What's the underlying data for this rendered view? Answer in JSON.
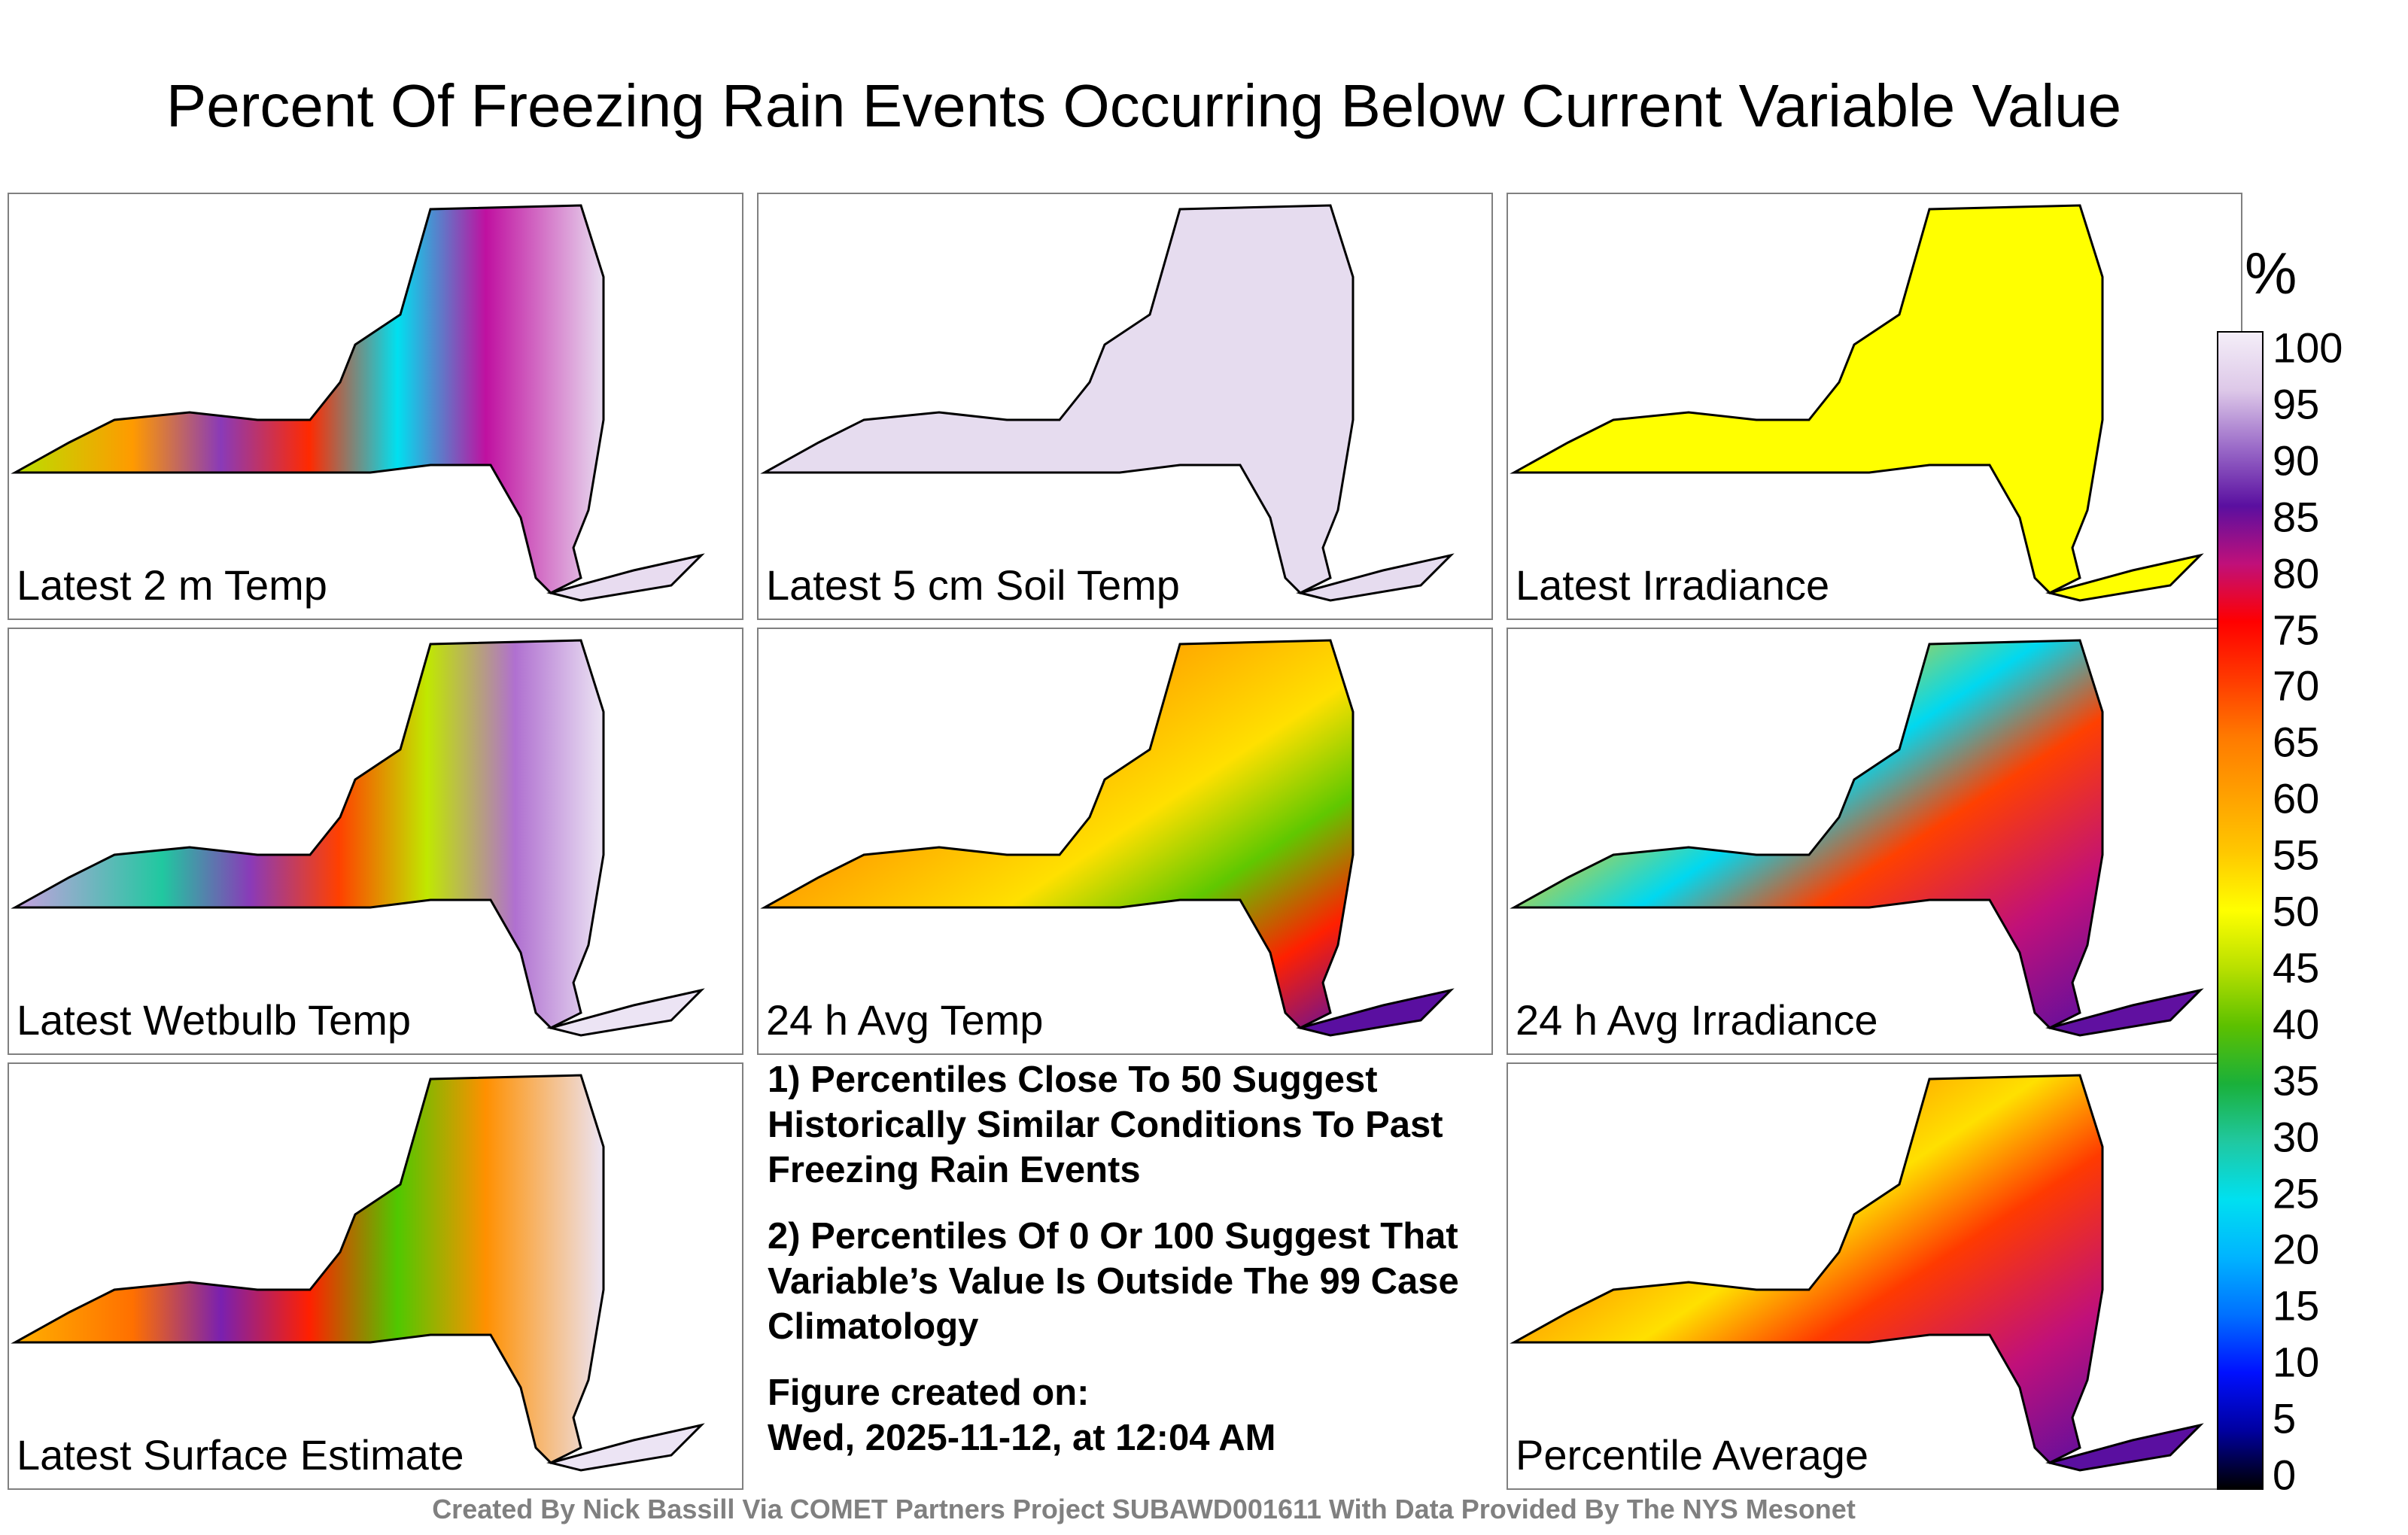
{
  "title": "Percent Of Freezing Rain Events Occurring Below Current Variable Value",
  "panels": [
    {
      "label": "Latest 2 m Temp"
    },
    {
      "label": "Latest 5 cm Soil Temp"
    },
    {
      "label": "Latest Irradiance"
    },
    {
      "label": "Latest Wetbulb Temp"
    },
    {
      "label": "24 h Avg Temp"
    },
    {
      "label": "24 h Avg Irradiance"
    },
    {
      "label": "Latest Surface Estimate"
    },
    {
      "label": "Percentile Average"
    }
  ],
  "notes": {
    "note1": "1) Percentiles Close To 50 Suggest Historically Similar Conditions To Past Freezing Rain Events",
    "note2": "2) Percentiles Of 0 Or 100 Suggest That Variable’s Value Is Outside The 99 Case Climatology",
    "created_label": "Figure created on:",
    "created_value": "Wed, 2025-11-12, at 12:04 AM"
  },
  "colorbar": {
    "unit": "%",
    "ticks": [
      "100",
      "95",
      "90",
      "85",
      "80",
      "75",
      "70",
      "65",
      "60",
      "55",
      "50",
      "45",
      "40",
      "35",
      "30",
      "25",
      "20",
      "15",
      "10",
      "5",
      "0"
    ]
  },
  "credit": "Created By Nick Bassill Via COMET Partners Project SUBAWD001611 With Data Provided By The NYS Mesonet"
}
